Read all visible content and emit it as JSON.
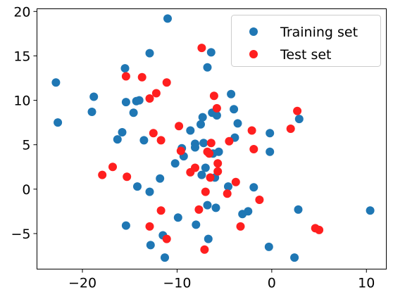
{
  "chart_data": {
    "type": "scatter",
    "title": "",
    "xlabel": "",
    "ylabel": "",
    "xlim": [
      -24.8,
      12.1
    ],
    "ylim": [
      -9.0,
      20.3
    ],
    "xticks": [
      -20,
      -10,
      0,
      10
    ],
    "yticks": [
      -5,
      0,
      5,
      10,
      15,
      20
    ],
    "grid": false,
    "legend_position": "top-right",
    "series": [
      {
        "name": "Training set",
        "color": "#1f77b4",
        "points": [
          [
            -22.8,
            12.0
          ],
          [
            -22.6,
            7.5
          ],
          [
            -18.8,
            10.4
          ],
          [
            -19.0,
            8.7
          ],
          [
            -16.3,
            5.6
          ],
          [
            -15.8,
            6.4
          ],
          [
            -15.5,
            13.6
          ],
          [
            -15.4,
            9.8
          ],
          [
            -15.4,
            -4.1
          ],
          [
            -14.6,
            8.6
          ],
          [
            -14.3,
            9.9
          ],
          [
            -14.0,
            10.0
          ],
          [
            -14.2,
            0.3
          ],
          [
            -13.5,
            5.5
          ],
          [
            -12.9,
            15.3
          ],
          [
            -12.9,
            -0.3
          ],
          [
            -12.8,
            -6.3
          ],
          [
            -11.8,
            1.2
          ],
          [
            -11.5,
            -5.2
          ],
          [
            -11.3,
            -7.7
          ],
          [
            -11.0,
            19.2
          ],
          [
            -10.2,
            2.9
          ],
          [
            -9.9,
            -3.2
          ],
          [
            -9.5,
            4.6
          ],
          [
            -9.3,
            3.7
          ],
          [
            -8.6,
            6.6
          ],
          [
            -8.1,
            5.1
          ],
          [
            -8.1,
            4.7
          ],
          [
            -8.0,
            -4.0
          ],
          [
            -7.5,
            7.3
          ],
          [
            -7.3,
            8.1
          ],
          [
            -7.2,
            5.2
          ],
          [
            -7.0,
            2.4
          ],
          [
            -6.8,
            13.7
          ],
          [
            -6.8,
            -1.8
          ],
          [
            -6.7,
            -5.6
          ],
          [
            -6.4,
            15.4
          ],
          [
            -6.3,
            8.6
          ],
          [
            -6.0,
            1.3
          ],
          [
            -5.9,
            -2.1
          ],
          [
            -5.8,
            8.3
          ],
          [
            -5.6,
            4.2
          ],
          [
            -4.6,
            0.3
          ],
          [
            -4.3,
            10.7
          ],
          [
            -4.0,
            9.0
          ],
          [
            -3.9,
            5.8
          ],
          [
            -3.6,
            7.4
          ],
          [
            -3.1,
            -2.8
          ],
          [
            -2.5,
            -2.5
          ],
          [
            -1.9,
            0.2
          ],
          [
            -0.3,
            -6.5
          ],
          [
            -0.2,
            6.3
          ],
          [
            -0.2,
            4.2
          ],
          [
            2.4,
            -7.7
          ],
          [
            2.8,
            -2.3
          ],
          [
            2.9,
            7.9
          ],
          [
            10.4,
            -2.4
          ],
          [
            -7.4,
            1.6
          ],
          [
            -6.2,
            4.0
          ]
        ]
      },
      {
        "name": "Test set",
        "color": "#ff1f1f",
        "points": [
          [
            -17.9,
            1.6
          ],
          [
            -16.8,
            2.5
          ],
          [
            -15.4,
            12.7
          ],
          [
            -15.3,
            1.4
          ],
          [
            -13.7,
            12.6
          ],
          [
            -12.9,
            10.2
          ],
          [
            -12.5,
            6.3
          ],
          [
            -12.2,
            10.8
          ],
          [
            -11.7,
            5.5
          ],
          [
            -11.7,
            -2.4
          ],
          [
            -11.1,
            12.0
          ],
          [
            -11.1,
            -5.6
          ],
          [
            -12.9,
            -4.2
          ],
          [
            -9.8,
            7.1
          ],
          [
            -9.6,
            4.3
          ],
          [
            -8.6,
            1.9
          ],
          [
            -8.1,
            2.4
          ],
          [
            -7.7,
            -2.3
          ],
          [
            -7.4,
            15.9
          ],
          [
            -7.1,
            -6.8
          ],
          [
            -7.0,
            -0.3
          ],
          [
            -6.8,
            4.2
          ],
          [
            -6.6,
            4.0
          ],
          [
            -6.5,
            1.3
          ],
          [
            -6.4,
            5.2
          ],
          [
            -6.1,
            10.5
          ],
          [
            -5.8,
            9.1
          ],
          [
            -5.7,
            2.9
          ],
          [
            -5.7,
            2.0
          ],
          [
            -4.7,
            -0.5
          ],
          [
            -4.5,
            5.4
          ],
          [
            -3.8,
            0.8
          ],
          [
            -3.3,
            -4.2
          ],
          [
            -2.1,
            6.6
          ],
          [
            -1.9,
            4.5
          ],
          [
            -1.3,
            -1.2
          ],
          [
            2.0,
            6.8
          ],
          [
            2.7,
            8.8
          ],
          [
            4.6,
            -4.4
          ],
          [
            5.0,
            -4.6
          ]
        ]
      }
    ]
  }
}
